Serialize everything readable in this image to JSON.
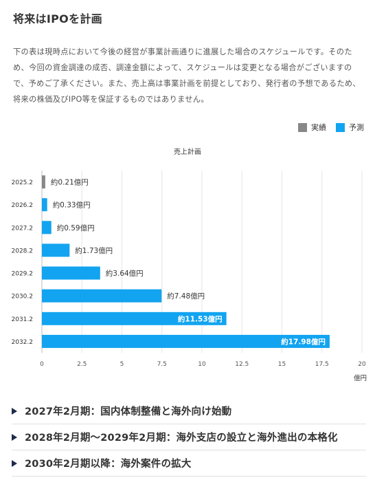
{
  "page": {
    "heading": "将来はIPOを計画",
    "description": "下の表は現時点において今後の経営が事業計画通りに進展した場合のスケジュールです。そのため、今回の資金調達の成否、調達金額によって、スケジュールは変更となる場合がございますので、予めご了承ください。また、売上高は事業計画を前提としており、発行者の予想であるため、将来の株価及びIPO等を保証するものではありません。"
  },
  "legend": [
    {
      "label": "実績",
      "color": "#888888"
    },
    {
      "label": "予測",
      "color": "#12a4f0"
    }
  ],
  "chart_data": {
    "type": "bar",
    "orientation": "horizontal",
    "title": "売上計画",
    "xlabel": "億円",
    "categories": [
      "2025.2",
      "2026.2",
      "2027.2",
      "2028.2",
      "2029.2",
      "2030.2",
      "2031.2",
      "2032.2"
    ],
    "values": [
      0.21,
      0.33,
      0.59,
      1.73,
      3.64,
      7.48,
      11.53,
      17.98
    ],
    "data_labels": [
      "約0.21億円",
      "約0.33億円",
      "約0.59億円",
      "約1.73億円",
      "約3.64億円",
      "約7.48億円",
      "約11.53億円",
      "約17.98億円"
    ],
    "bar_kind": [
      "実績",
      "予測",
      "予測",
      "予測",
      "予測",
      "予測",
      "予測",
      "予測"
    ],
    "xlim": [
      0,
      20
    ],
    "xticks": [
      "0",
      "2.5",
      "5",
      "7.5",
      "10",
      "12.5",
      "15",
      "17.5",
      "20"
    ],
    "grid": true
  },
  "milestones": [
    {
      "label": "2027年2月期：国内体制整備と海外向け始動"
    },
    {
      "label": "2028年2月期〜2029年2月期：海外支店の設立と海外進出の本格化"
    },
    {
      "label": "2030年2月期以降：海外案件の拡大"
    }
  ]
}
